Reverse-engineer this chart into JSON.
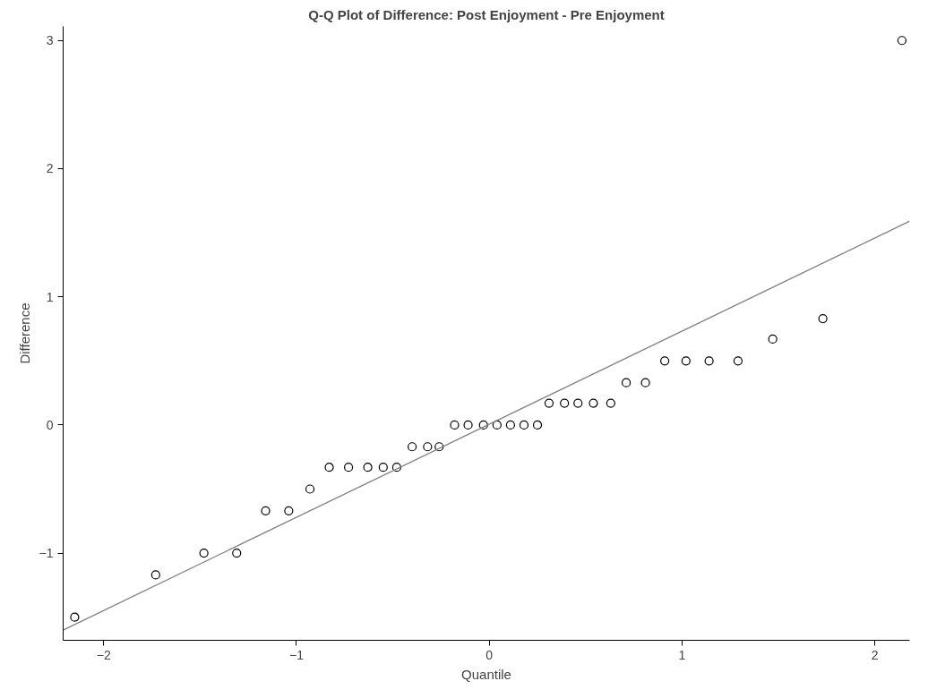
{
  "chart_data": {
    "type": "scatter",
    "title": "Q-Q Plot of Difference: Post Enjoyment - Pre Enjoyment",
    "xlabel": "Quantile",
    "ylabel": "Difference",
    "grid": false,
    "xlim": [
      -2.21,
      2.18
    ],
    "ylim": [
      -1.68,
      3.11
    ],
    "xticks": [
      -2,
      -1,
      0,
      1,
      2
    ],
    "yticks": [
      -1,
      0,
      1,
      2,
      3
    ],
    "series": [
      {
        "color": "#000000",
        "marker": "circle",
        "x": [
          -2.15,
          -1.73,
          -1.48,
          -1.31,
          -1.16,
          -1.04,
          -0.93,
          -0.83,
          -0.73,
          -0.63,
          -0.55,
          -0.48,
          -0.4,
          -0.32,
          -0.26,
          -0.18,
          -0.11,
          -0.03,
          0.04,
          0.11,
          0.18,
          0.25,
          0.31,
          0.39,
          0.46,
          0.54,
          0.63,
          0.71,
          0.81,
          0.91,
          1.02,
          1.14,
          1.29,
          1.47,
          1.73,
          2.14
        ],
        "values": [
          -1.5,
          -1.17,
          -1,
          -1,
          -0.67,
          -0.67,
          -0.5,
          -0.33,
          -0.33,
          -0.33,
          -0.33,
          -0.33,
          -0.17,
          -0.17,
          -0.17,
          0,
          0,
          0,
          0,
          0,
          0,
          0,
          0.17,
          0.17,
          0.17,
          0.17,
          0.17,
          0.33,
          0.33,
          0.5,
          0.5,
          0.5,
          0.5,
          0.67,
          0.83,
          3
        ]
      },
      {
        "type": "line",
        "color": "#808080",
        "x": [
          -2.21,
          2.18
        ],
        "values": [
          -1.6,
          1.59
        ]
      }
    ]
  }
}
